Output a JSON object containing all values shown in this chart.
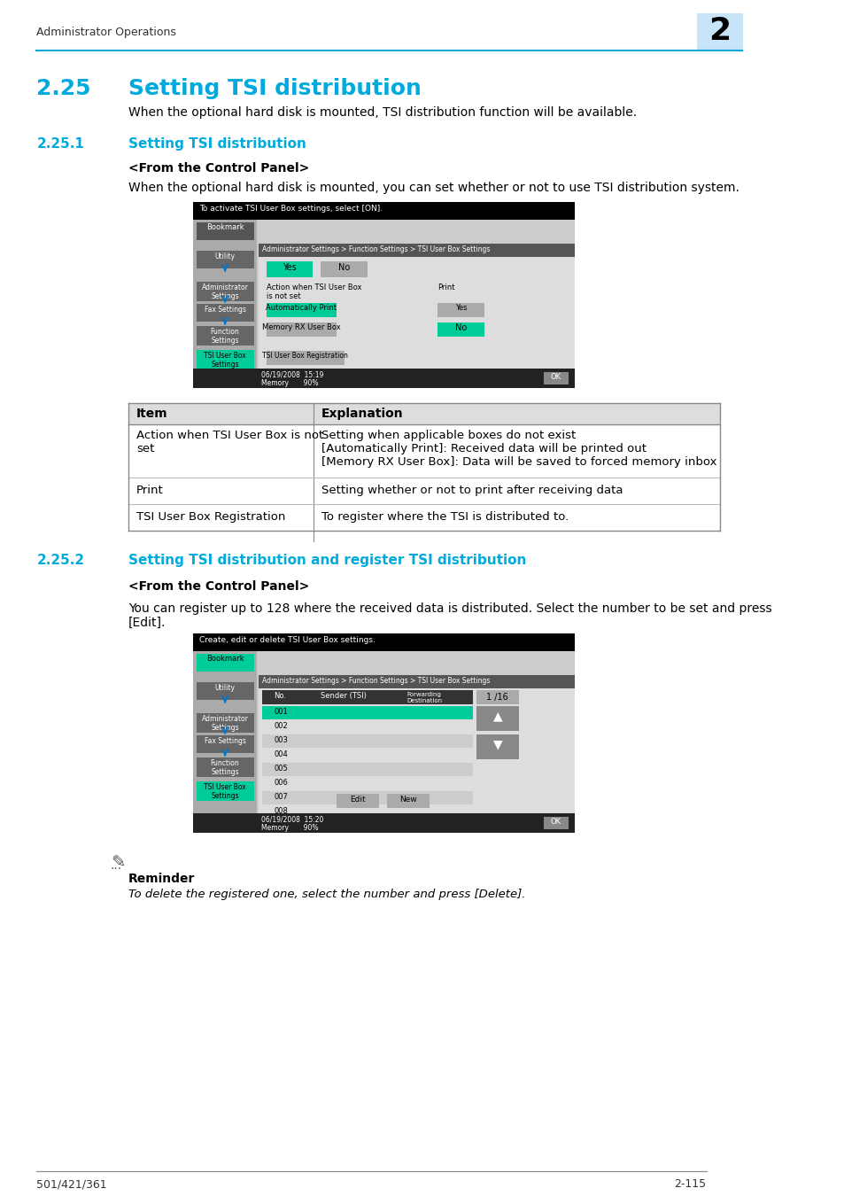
{
  "page_bg": "#ffffff",
  "header_text": "Administrator Operations",
  "header_num": "2",
  "header_num_bg": "#c8e4f8",
  "header_line_color": "#00aadd",
  "section_title_color": "#00aadd",
  "body_text_color": "#000000",
  "footer_left": "501/421/361",
  "footer_right": "2-115",
  "section_225_num": "2.25",
  "section_225_title": "Setting TSI distribution",
  "section_225_body": "When the optional hard disk is mounted, TSI distribution function will be available.",
  "section_2251_num": "2.25.1",
  "section_2251_title": "Setting TSI distribution",
  "from_control_panel_1": "<From the Control Panel>",
  "body_text_1": "When the optional hard disk is mounted, you can set whether or not to use TSI distribution system.",
  "table_header_item": "Item",
  "table_header_explanation": "Explanation",
  "table_rows": [
    {
      "item": "Action when TSI User Box is not\nset",
      "explanation": "Setting when applicable boxes do not exist\n[Automatically Print]: Received data will be printed out\n[Memory RX User Box]: Data will be saved to forced memory inbox"
    },
    {
      "item": "Print",
      "explanation": "Setting whether or not to print after receiving data"
    },
    {
      "item": "TSI User Box Registration",
      "explanation": "To register where the TSI is distributed to."
    }
  ],
  "section_2252_num": "2.25.2",
  "section_2252_title": "Setting TSI distribution and register TSI distribution",
  "from_control_panel_2": "<From the Control Panel>",
  "body_text_2": "You can register up to 128 where the received data is distributed. Select the number to be set and press\n[Edit].",
  "reminder_text": "Reminder",
  "reminder_body": "To delete the registered one, select the number and press [Delete].",
  "screen1_bg": "#000000",
  "screen1_panel_bg": "#888888",
  "screen1_btn_green": "#00cc99",
  "screen2_bg": "#000000",
  "screen2_panel_bg": "#888888",
  "screen2_btn_green": "#00cc99"
}
